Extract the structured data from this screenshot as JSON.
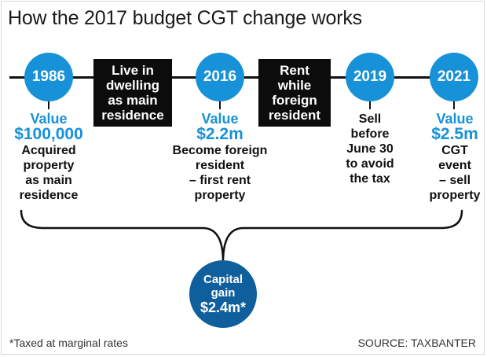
{
  "title": "How the 2017 budget CGT change works",
  "years": {
    "y1986": "1986",
    "y2016": "2016",
    "y2019": "2019",
    "y2021": "2021"
  },
  "periods": {
    "live": [
      "Live in",
      "dwelling",
      "as main",
      "residence"
    ],
    "rent": [
      "Rent",
      "while",
      "foreign",
      "resident"
    ]
  },
  "values": {
    "v1986": {
      "label": "Value",
      "amount": "$100,000"
    },
    "v2016": {
      "label": "Value",
      "amount": "$2.2m"
    },
    "v2021": {
      "label": "Value",
      "amount": "$2.5m"
    }
  },
  "descriptions": {
    "d1986": [
      "Acquired",
      "property",
      "as main",
      "residence"
    ],
    "d2016": [
      "Become foreign",
      "resident",
      "– first rent",
      "property"
    ],
    "d2019": [
      "Sell",
      "before",
      "June 30",
      "to avoid",
      "the tax"
    ],
    "d2021": [
      "CGT",
      "event",
      "– sell",
      "property"
    ]
  },
  "capital_gain": {
    "label1": "Capital",
    "label2": "gain",
    "amount": "$2.4m*"
  },
  "footnote": "*Taxed at marginal rates",
  "source": "SOURCE: TAXBANTER",
  "colors": {
    "circle": "#1791d7",
    "gain_circle": "#0e5f9c",
    "box": "#0c0c0c",
    "value_text": "#1791d7"
  }
}
